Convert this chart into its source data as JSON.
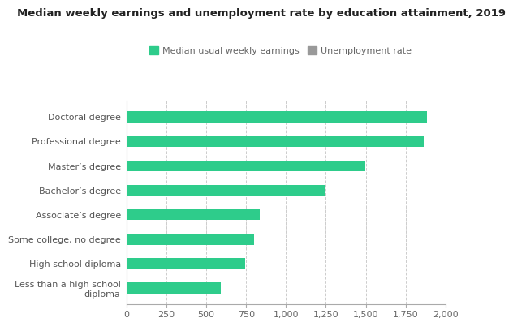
{
  "title": "Median weekly earnings and unemployment rate by education attainment, 2019",
  "categories": [
    "Doctoral degree",
    "Professional degree",
    "Master’s degree",
    "Bachelor’s degree",
    "Associate’s degree",
    "Some college, no degree",
    "High school diploma",
    "Less than a high school\ndiploma"
  ],
  "earnings": [
    1883,
    1861,
    1497,
    1248,
    836,
    802,
    746,
    592
  ],
  "bar_color": "#2ECC8B",
  "legend_green_color": "#2ECC8B",
  "legend_gray_color": "#999999",
  "title_fontsize": 9.5,
  "tick_fontsize": 8,
  "label_fontsize": 8,
  "legend_fontsize": 8,
  "xlim": [
    0,
    2000
  ],
  "xticks": [
    0,
    250,
    500,
    750,
    1000,
    1250,
    1500,
    1750,
    2000
  ],
  "xtick_labels": [
    "0",
    "250",
    "500",
    "750",
    "1,000",
    "1,250",
    "1,500",
    "1,750",
    "2,000"
  ],
  "background_color": "#ffffff",
  "grid_color": "#cccccc",
  "bar_height": 0.45
}
